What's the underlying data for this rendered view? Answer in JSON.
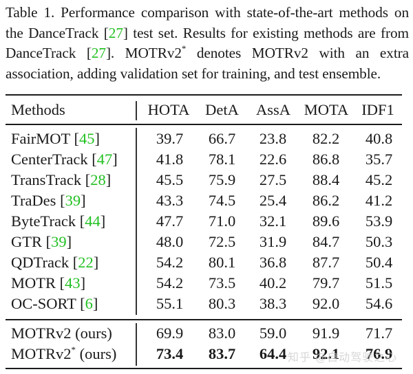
{
  "caption": {
    "part1": "Table 1.  Performance comparison with state-of-the-art methods on the DanceTrack [",
    "cite1": "27",
    "part2": "] test set. Results for existing methods are from DanceTrack [",
    "cite2": "27",
    "part3": "]. MOTRv2",
    "star": "*",
    "part4": " denotes MOTRv2 with an extra association, adding validation set for training, and test ensemble."
  },
  "table": {
    "headers": [
      "Methods",
      "HOTA",
      "DetA",
      "AssA",
      "MOTA",
      "IDF1"
    ],
    "rows": [
      {
        "name": "FairMOT",
        "cite": "45",
        "values": [
          "39.7",
          "66.7",
          "23.8",
          "82.2",
          "40.8"
        ]
      },
      {
        "name": "CenterTrack",
        "cite": "47",
        "values": [
          "41.8",
          "78.1",
          "22.6",
          "86.8",
          "35.7"
        ]
      },
      {
        "name": "TransTrack",
        "cite": "28",
        "values": [
          "45.5",
          "75.9",
          "27.5",
          "88.4",
          "45.2"
        ]
      },
      {
        "name": "TraDes",
        "cite": "39",
        "values": [
          "43.3",
          "74.5",
          "25.4",
          "86.2",
          "41.2"
        ]
      },
      {
        "name": "ByteTrack",
        "cite": "44",
        "values": [
          "47.7",
          "71.0",
          "32.1",
          "89.6",
          "53.9"
        ]
      },
      {
        "name": "GTR",
        "cite": "39",
        "values": [
          "48.0",
          "72.5",
          "31.9",
          "84.7",
          "50.3"
        ]
      },
      {
        "name": "QDTrack",
        "cite": "22",
        "values": [
          "54.2",
          "80.1",
          "36.8",
          "87.7",
          "50.4"
        ]
      },
      {
        "name": "MOTR",
        "cite": "43",
        "values": [
          "54.2",
          "73.5",
          "40.2",
          "79.7",
          "51.5"
        ]
      },
      {
        "name": "OC-SORT",
        "cite": "6",
        "values": [
          "55.1",
          "80.3",
          "38.3",
          "92.0",
          "54.6"
        ]
      }
    ],
    "ours": [
      {
        "name": "MOTRv2",
        "star": "",
        "suffix": " (ours)",
        "values": [
          "69.9",
          "83.0",
          "59.0",
          "91.9",
          "71.7"
        ]
      },
      {
        "name": "MOTRv2",
        "star": "*",
        "suffix": " (ours)",
        "values": [
          "73.4",
          "83.7",
          "64.4",
          "92.1",
          "76.9"
        ],
        "bold": true
      }
    ]
  },
  "watermark": "知乎 @自动驾驶之心",
  "colors": {
    "citation": "#22c022",
    "text": "#1a1a1a"
  }
}
